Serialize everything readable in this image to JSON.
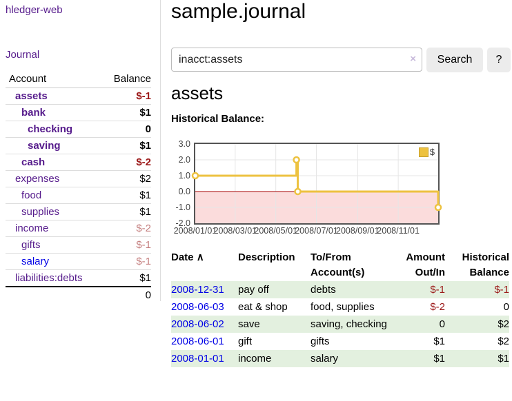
{
  "app": {
    "title": "hledger-web"
  },
  "sidebar": {
    "journal_label": "Journal",
    "headers": {
      "account": "Account",
      "balance": "Balance"
    },
    "accounts": [
      {
        "name": "assets",
        "balance": "$-1",
        "indent": 1,
        "emph": true
      },
      {
        "name": "bank",
        "balance": "$1",
        "indent": 2,
        "emph": true
      },
      {
        "name": "checking",
        "balance": "0",
        "indent": 3,
        "emph": true
      },
      {
        "name": "saving",
        "balance": "$1",
        "indent": 3,
        "emph": true
      },
      {
        "name": "cash",
        "balance": "$-2",
        "indent": 2,
        "emph": true
      },
      {
        "name": "expenses",
        "balance": "$2",
        "indent": 1,
        "emph": false
      },
      {
        "name": "food",
        "balance": "$1",
        "indent": 2,
        "emph": false
      },
      {
        "name": "supplies",
        "balance": "$1",
        "indent": 2,
        "emph": false
      },
      {
        "name": "income",
        "balance": "$-2",
        "indent": 1,
        "emph": false
      },
      {
        "name": "gifts",
        "balance": "$-1",
        "indent": 2,
        "emph": false
      },
      {
        "name": "salary",
        "balance": "$-1",
        "indent": 2,
        "emph": false,
        "blue_link": true
      },
      {
        "name": "liabilities:debts",
        "balance": "$1",
        "indent": 1,
        "emph": false
      }
    ],
    "total": "0"
  },
  "main": {
    "title": "sample.journal",
    "search": {
      "value": "inacct:assets",
      "clear_icon": "×",
      "button_label": "Search",
      "help_label": "?"
    },
    "account_heading": "assets",
    "chart_heading": "Historical Balance:"
  },
  "chart_data": {
    "type": "line",
    "step": true,
    "title": "Historical Balance",
    "x_range": [
      "2008-01-01",
      "2008-12-31"
    ],
    "ylim": [
      -2,
      3
    ],
    "y_ticks": [
      3.0,
      2.0,
      1.0,
      0.0,
      -1.0,
      -2.0
    ],
    "x_ticks": [
      "2008/01/01",
      "2008/03/01",
      "2008/05/01",
      "2008/07/01",
      "2008/09/01",
      "2008/11/01"
    ],
    "series": [
      {
        "name": "$",
        "color": "#edc240",
        "points": [
          [
            "2008-01-01",
            1
          ],
          [
            "2008-06-01",
            2
          ],
          [
            "2008-06-03",
            0
          ],
          [
            "2008-12-31",
            -1
          ]
        ]
      }
    ],
    "legend": {
      "label": "$",
      "position": "top-right"
    },
    "grid": true,
    "negative_region_shaded": true
  },
  "transactions": {
    "headers": {
      "date": "Date",
      "sort_icon": "∧",
      "description": "Description",
      "accounts": "To/From Account(s)",
      "amount": "Amount Out/In",
      "balance": "Historical Balance"
    },
    "rows": [
      {
        "date": "2008-12-31",
        "description": "pay off",
        "accounts": "debts",
        "amount": "$-1",
        "balance": "$-1"
      },
      {
        "date": "2008-06-03",
        "description": "eat & shop",
        "accounts": "food, supplies",
        "amount": "$-2",
        "balance": "0"
      },
      {
        "date": "2008-06-02",
        "description": "save",
        "accounts": "saving, checking",
        "amount": "0",
        "balance": "$2"
      },
      {
        "date": "2008-06-01",
        "description": "gift",
        "accounts": "gifts",
        "amount": "$1",
        "balance": "$2"
      },
      {
        "date": "2008-01-01",
        "description": "income",
        "accounts": "salary",
        "amount": "$1",
        "balance": "$1"
      }
    ]
  },
  "colors": {
    "link_purple": "#551a8b",
    "link_blue": "#0000e6",
    "negative_strong": "#9b1717",
    "negative_soft": "#c47e7e",
    "row_green": "#e3f0df",
    "chart_line": "#edc240",
    "chart_negative_bg": "#fbdcdc",
    "chart_zero_line": "#a40000",
    "chart_border": "#545454",
    "button_bg": "#ececec"
  }
}
